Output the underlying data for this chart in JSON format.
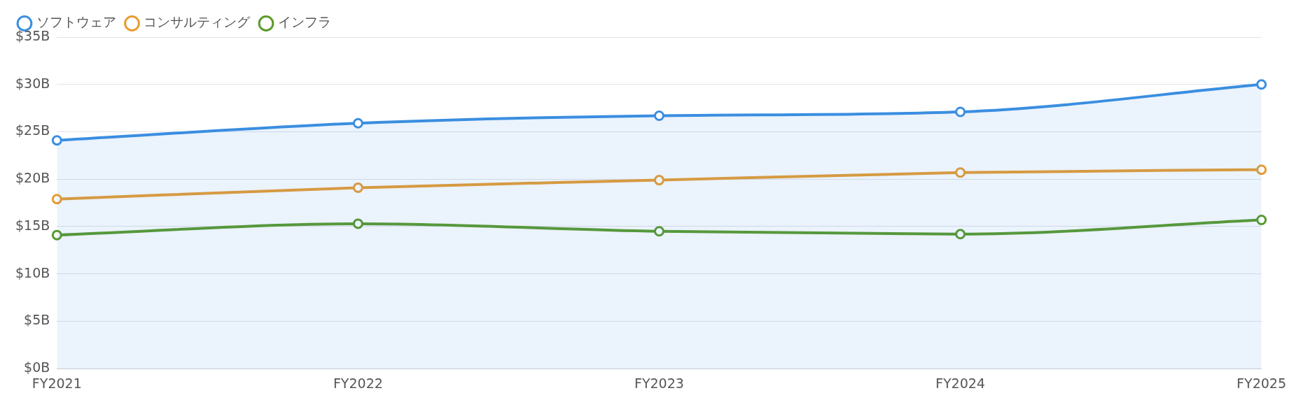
{
  "chart_data": {
    "type": "line",
    "categories": [
      "FY2021",
      "FY2022",
      "FY2023",
      "FY2024",
      "FY2025"
    ],
    "series": [
      {
        "name": "ソフトウェア",
        "type": "area",
        "color": "#3a8ee0",
        "values": [
          24.1,
          25.9,
          26.7,
          27.1,
          30.0
        ]
      },
      {
        "name": "コンサルティング",
        "color": "#e89c30",
        "values": [
          17.9,
          19.1,
          19.9,
          20.7,
          21.0
        ]
      },
      {
        "name": "インフラ",
        "color": "#5a9a2a",
        "values": [
          14.1,
          15.3,
          14.5,
          14.2,
          15.7
        ]
      }
    ],
    "ylim": [
      0,
      35
    ],
    "yticks": [
      {
        "value": 0,
        "label": "$0B"
      },
      {
        "value": 5,
        "label": "$5B"
      },
      {
        "value": 10,
        "label": "$10B"
      },
      {
        "value": 15,
        "label": "$15B"
      },
      {
        "value": 20,
        "label": "$20B"
      },
      {
        "value": 25,
        "label": "$25B"
      },
      {
        "value": 30,
        "label": "$30B"
      },
      {
        "value": 35,
        "label": "$35B"
      }
    ],
    "grid": "y",
    "legend": "top left",
    "marker": "circle"
  }
}
